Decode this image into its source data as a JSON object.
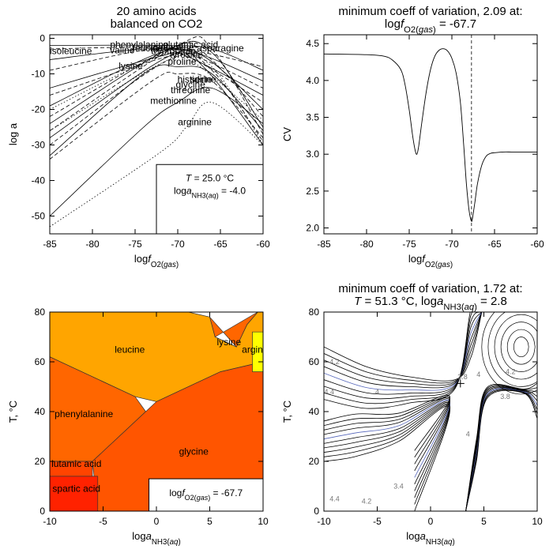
{
  "chart_data": [
    {
      "type": "line",
      "title": [
        "20 amino acids",
        "balanced on CO2"
      ],
      "xlabel": "logf_O2(gas)",
      "ylabel": "log a",
      "xlim": [
        -85,
        -60
      ],
      "ylim": [
        -55,
        1
      ],
      "xticks": [
        -85,
        -80,
        -75,
        -70,
        -65,
        -60
      ],
      "yticks": [
        0,
        -10,
        -20,
        -30,
        -40,
        -50
      ],
      "legend": [
        "T = 25.0 °C",
        "loga_NH3(aq) = -4.0"
      ],
      "series_labels": [
        {
          "name": "isoleucine",
          "x": -85,
          "y": -3.5
        },
        {
          "name": "phenylalanine",
          "x": -74.5,
          "y": -1.8
        },
        {
          "name": "glutamic acid",
          "x": -68.5,
          "y": -1.8
        },
        {
          "name": "glutamine",
          "x": -70.5,
          "y": -2.5
        },
        {
          "name": "leucine",
          "x": -73.5,
          "y": -2.8
        },
        {
          "name": "valine",
          "x": -76.5,
          "y": -3.3
        },
        {
          "name": "tryptophan",
          "x": -70.5,
          "y": -3.5
        },
        {
          "name": "asparagine",
          "x": -65,
          "y": -2.8
        },
        {
          "name": "tyrosine",
          "x": -69,
          "y": -4.6
        },
        {
          "name": "lysine",
          "x": -75.5,
          "y": -7.8
        },
        {
          "name": "proline",
          "x": -69.5,
          "y": -6.5
        },
        {
          "name": "histidine",
          "x": -68,
          "y": -11.5
        },
        {
          "name": "serine",
          "x": -67,
          "y": -11.5
        },
        {
          "name": "glycine",
          "x": -68.5,
          "y": -13
        },
        {
          "name": "threonine",
          "x": -68.5,
          "y": -14.5
        },
        {
          "name": "methionine",
          "x": -70.5,
          "y": -17.5
        },
        {
          "name": "arginine",
          "x": -68,
          "y": -23.5
        }
      ],
      "series": [
        {
          "style": "solid",
          "x": [
            -85,
            -72,
            -66,
            -60
          ],
          "y": [
            -2,
            -2,
            -3,
            -9
          ]
        },
        {
          "style": "dashed",
          "x": [
            -85,
            -73,
            -67,
            -60
          ],
          "y": [
            -3,
            -2.5,
            -4,
            -8
          ]
        },
        {
          "style": "solid",
          "x": [
            -85,
            -74,
            -68,
            -60
          ],
          "y": [
            -6,
            -3,
            -4,
            -12
          ]
        },
        {
          "style": "dashed",
          "x": [
            -85,
            -73,
            -68,
            -60
          ],
          "y": [
            -9,
            -3,
            -5,
            -14
          ]
        },
        {
          "style": "solid",
          "x": [
            -85,
            -72,
            -69,
            -60
          ],
          "y": [
            -14,
            -5,
            -5,
            -16
          ]
        },
        {
          "style": "dashed",
          "x": [
            -85,
            -71,
            -68,
            -60
          ],
          "y": [
            -16,
            -5,
            -6,
            -18
          ]
        },
        {
          "style": "solid",
          "x": [
            -85,
            -72,
            -67,
            -60
          ],
          "y": [
            -19,
            -4,
            -5,
            -20
          ]
        },
        {
          "style": "dashed",
          "x": [
            -85,
            -71,
            -67,
            -60
          ],
          "y": [
            -22,
            -3,
            -4,
            -22
          ]
        },
        {
          "style": "solid",
          "x": [
            -85,
            -71,
            -66,
            -60
          ],
          "y": [
            -24,
            -3,
            -4,
            -25
          ]
        },
        {
          "style": "dashed",
          "x": [
            -85,
            -70,
            -66,
            -60
          ],
          "y": [
            -26,
            -2,
            -3,
            -27
          ]
        },
        {
          "style": "solid",
          "x": [
            -85,
            -71,
            -67,
            -60
          ],
          "y": [
            -28,
            -5,
            -8,
            -30
          ]
        },
        {
          "style": "dashed",
          "x": [
            -85,
            -71,
            -66,
            -60
          ],
          "y": [
            -30,
            -6,
            -9,
            -29
          ]
        },
        {
          "style": "solid",
          "x": [
            -85,
            -74,
            -70,
            -66,
            -60
          ],
          "y": [
            -33,
            -10,
            -8,
            -10,
            -26
          ]
        },
        {
          "style": "dashed",
          "x": [
            -85,
            -73,
            -70,
            -66,
            -60
          ],
          "y": [
            -34,
            -12,
            -10,
            -12,
            -28
          ]
        },
        {
          "style": "dotted",
          "x": [
            -85,
            -72,
            -68,
            -60
          ],
          "y": [
            -20,
            -5,
            -7,
            -23
          ]
        },
        {
          "style": "dotted",
          "x": [
            -85,
            -71,
            -66,
            -60
          ],
          "y": [
            -26,
            -6,
            -8,
            -30
          ]
        },
        {
          "style": "solid",
          "x": [
            -85,
            -74,
            -70,
            -66,
            -60
          ],
          "y": [
            -50,
            -25,
            -18,
            -14,
            -24
          ]
        },
        {
          "style": "dotted",
          "x": [
            -85,
            -72,
            -69,
            -66,
            -60
          ],
          "y": [
            -53,
            -32,
            -25,
            -18,
            -30
          ]
        }
      ]
    },
    {
      "type": "line",
      "title": [
        "minimum coeff of variation, 2.09 at:",
        "logf_O2(gas) = -67.7"
      ],
      "xlabel": "logf_O2(gas)",
      "ylabel": "CV",
      "xlim": [
        -85,
        -60
      ],
      "ylim": [
        1.92,
        4.62
      ],
      "xticks": [
        -85,
        -80,
        -75,
        -70,
        -65,
        -60
      ],
      "yticks": [
        2.0,
        2.5,
        3.0,
        3.5,
        4.0,
        4.5
      ],
      "marker_x": -67.7,
      "series": [
        {
          "x": [
            -85,
            -80,
            -78,
            -77,
            -76,
            -75.5,
            -75,
            -74.6,
            -74.3,
            -74.1,
            -73.9,
            -73.5,
            -73,
            -72.5,
            -72,
            -71.5,
            -71,
            -70.5,
            -70,
            -69.5,
            -69,
            -68.6,
            -68.3,
            -68,
            -67.8,
            -67.7,
            -67.6,
            -67.3,
            -67,
            -66.5,
            -66,
            -65.5,
            -65,
            -64,
            -63,
            -62,
            -60
          ],
          "y": [
            4.36,
            4.35,
            4.33,
            4.28,
            4.15,
            3.95,
            3.6,
            3.25,
            3.05,
            3.0,
            3.1,
            3.45,
            3.85,
            4.15,
            4.33,
            4.41,
            4.43,
            4.4,
            4.3,
            4.1,
            3.7,
            3.1,
            2.6,
            2.25,
            2.12,
            2.09,
            2.12,
            2.35,
            2.6,
            2.85,
            2.97,
            3.01,
            3.02,
            3.03,
            3.03,
            3.03,
            3.03
          ]
        }
      ]
    },
    {
      "type": "heatmap",
      "xlabel": "loga_NH3(aq)",
      "ylabel": "T, °C",
      "xlim": [
        -10,
        10
      ],
      "ylim": [
        0,
        80
      ],
      "xticks": [
        -10,
        -5,
        0,
        5,
        10
      ],
      "yticks": [
        0,
        20,
        40,
        60,
        80
      ],
      "legend": "logf_O2(gas) = -67.7",
      "regions": [
        {
          "name": "leucine",
          "color": "#ffa500",
          "x": [
            -10,
            3,
            5,
            5.5,
            7.5,
            8.5,
            9.5,
            10,
            10,
            6,
            0,
            -2,
            -8,
            -10
          ],
          "y": [
            80,
            80,
            78,
            70,
            66,
            75,
            80,
            80,
            60,
            56,
            44,
            46,
            58,
            62
          ],
          "label_x": -2.5,
          "label_y": 65
        },
        {
          "name": "phenylalanine",
          "color": "#ff6600",
          "x": [
            -10,
            -8,
            -2,
            -1,
            -3,
            -6,
            -10
          ],
          "y": [
            62,
            58,
            46,
            40,
            32,
            20,
            20
          ],
          "label_x": -6.8,
          "label_y": 39
        },
        {
          "name": "glycine",
          "color": "#ff5500",
          "x": [
            -6,
            -3,
            -1,
            0,
            6,
            10,
            10,
            -5.5
          ],
          "y": [
            20,
            32,
            40,
            44,
            56,
            60,
            0,
            0
          ],
          "label_x": 3.5,
          "label_y": 24
        },
        {
          "name": "lysine",
          "color": "#ff6600",
          "x": [
            5.5,
            5,
            7.5,
            8.5,
            9.5
          ],
          "y": [
            70,
            78,
            66,
            75,
            80
          ],
          "label_x": 6.8,
          "label_y": 68
        },
        {
          "name": "arginine",
          "color": "#ffff00",
          "x": [
            10,
            9,
            9,
            10
          ],
          "y": [
            72,
            72,
            56,
            56
          ],
          "label_x": 9,
          "label_y": 65
        },
        {
          "name": "glutamic acid",
          "color": "#ff4400",
          "x": [
            -10,
            -6,
            -6,
            -10
          ],
          "y": [
            20,
            20,
            14,
            14
          ],
          "label_x": -7.5,
          "label_y": 19
        },
        {
          "name": "aspartic acid",
          "color": "#ff2200",
          "x": [
            -10,
            -5.5,
            -5.5,
            -10
          ],
          "y": [
            14,
            14,
            0,
            0
          ],
          "label_x": -7.5,
          "label_y": 9
        }
      ],
      "region_labels": [
        "leucine",
        "phenylalanine",
        "glycine",
        "lysine",
        "argin",
        "lutamic acid",
        "spartic acid"
      ]
    },
    {
      "type": "line",
      "subtype": "contour",
      "title": [
        "minimum coeff of variation, 1.72 at:",
        "T = 51.3 °C, loga_NH3(aq) = 2.8"
      ],
      "xlabel": "loga_NH3(aq)",
      "ylabel": "T, °C",
      "xlim": [
        -10,
        10
      ],
      "ylim": [
        0,
        80
      ],
      "xticks": [
        -10,
        -5,
        0,
        5,
        10
      ],
      "yticks": [
        0,
        20,
        40,
        60,
        80
      ],
      "minimum": {
        "x": 2.8,
        "y": 51.3
      },
      "contour_labels": [
        {
          "text": "4.2",
          "x": 7.5,
          "y": 56
        },
        {
          "text": "4",
          "x": 4.5,
          "y": 55
        },
        {
          "text": "3.8",
          "x": 3,
          "y": 54
        },
        {
          "text": "4.2",
          "x": -9,
          "y": 60
        },
        {
          "text": "4.4",
          "x": -9.5,
          "y": 48
        },
        {
          "text": "4",
          "x": -5,
          "y": 48
        },
        {
          "text": "4",
          "x": 3.5,
          "y": 31
        },
        {
          "text": "3.8",
          "x": 7,
          "y": 46
        },
        {
          "text": "4.4",
          "x": -9,
          "y": 5
        },
        {
          "text": "4.2",
          "x": -6,
          "y": 4
        },
        {
          "text": "3.4",
          "x": -3,
          "y": 10
        }
      ]
    }
  ]
}
